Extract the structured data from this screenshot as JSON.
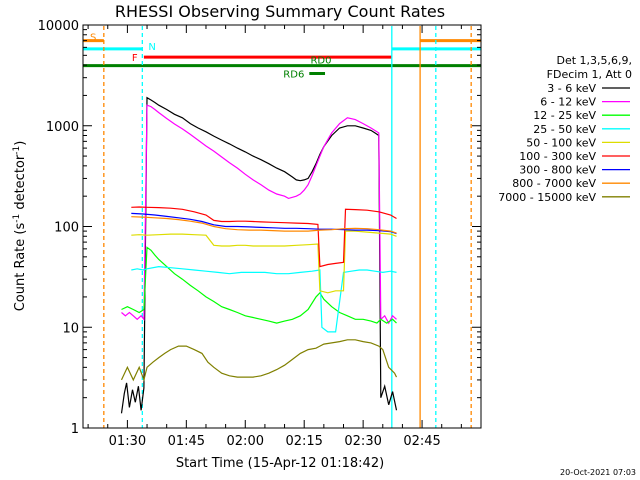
{
  "chart_data": {
    "type": "line",
    "title": "RHESSI Observing Summary Count Rates",
    "xlabel": "Start Time (15-Apr-12 01:18:42)",
    "ylabel_main": "Count Rate (s",
    "ylabel_sup1": "-1",
    "ylabel_mid": " detector",
    "ylabel_sup2": "-1",
    "ylabel_end": ")",
    "xlim": [
      78.7,
      180
    ],
    "ylim": [
      1,
      10000
    ],
    "yscale": "log",
    "x_unit": "minutes after 00:00 UT",
    "xticks": [
      {
        "value": 90,
        "label": "01:30"
      },
      {
        "value": 105,
        "label": "01:45"
      },
      {
        "value": 120,
        "label": "02:00"
      },
      {
        "value": 135,
        "label": "02:15"
      },
      {
        "value": 150,
        "label": "02:30"
      },
      {
        "value": 165,
        "label": "02:45"
      }
    ],
    "yticks": [
      {
        "value": 1,
        "label": "1"
      },
      {
        "value": 10,
        "label": "10"
      },
      {
        "value": 100,
        "label": "100"
      },
      {
        "value": 1000,
        "label": "1000"
      },
      {
        "value": 10000,
        "label": "10000"
      }
    ],
    "legend": {
      "header1": "Det 1,3,5,6,9,",
      "header2": "FDecim 1, Att 0",
      "placement": "right"
    },
    "series": [
      {
        "name": "3 - 6 keV",
        "color": "#000000",
        "x": [
          88.5,
          89.2,
          89.8,
          90.5,
          91.3,
          92.0,
          92.8,
          93.5,
          94.2,
          95.0,
          96.0,
          97.0,
          98.0,
          100.0,
          102.0,
          104.0,
          106.0,
          108.0,
          110.0,
          112.0,
          114.0,
          116.0,
          118.0,
          120.0,
          122.0,
          124.0,
          126.0,
          128.0,
          130.0,
          132.0,
          133.0,
          134.0,
          135.0,
          136.0,
          137.0,
          138.0,
          139.0,
          140.0,
          142.0,
          144.0,
          146.0,
          148.0,
          150.0,
          152.0,
          153.0,
          154.0,
          154.5,
          155.5,
          156.5,
          157.5,
          158.5
        ],
        "y": [
          1.4,
          2.2,
          2.8,
          1.6,
          2.4,
          1.8,
          2.6,
          1.5,
          2.5,
          1900,
          1800,
          1700,
          1600,
          1450,
          1300,
          1200,
          1050,
          950,
          870,
          790,
          720,
          660,
          600,
          550,
          500,
          460,
          420,
          380,
          350,
          310,
          290,
          285,
          290,
          300,
          350,
          420,
          520,
          620,
          800,
          950,
          1000,
          1000,
          950,
          900,
          850,
          800,
          2.0,
          2.6,
          1.7,
          2.3,
          1.5
        ]
      },
      {
        "name": "6 - 12 keV",
        "color": "#ff00ff",
        "x": [
          88.5,
          89.5,
          90.5,
          91.5,
          92.5,
          93.5,
          94.2,
          95.0,
          96.0,
          97.0,
          98.0,
          100.0,
          102.0,
          104.0,
          106.0,
          108.0,
          110.0,
          112.0,
          114.0,
          116.0,
          118.0,
          120.0,
          122.0,
          124.0,
          126.0,
          128.0,
          130.0,
          131.0,
          132.0,
          133.0,
          134.0,
          135.0,
          136.0,
          137.0,
          138.0,
          139.0,
          140.0,
          142.0,
          144.0,
          146.0,
          148.0,
          150.0,
          152.0,
          154.0,
          154.5,
          155.5,
          156.5,
          157.5,
          158.5
        ],
        "y": [
          14,
          13,
          14,
          13,
          12,
          13,
          12,
          1600,
          1550,
          1450,
          1350,
          1180,
          1040,
          930,
          820,
          720,
          630,
          560,
          490,
          430,
          380,
          330,
          290,
          260,
          230,
          210,
          200,
          190,
          195,
          200,
          210,
          230,
          260,
          320,
          400,
          500,
          620,
          850,
          1050,
          1200,
          1150,
          1050,
          950,
          850,
          12,
          13,
          11,
          13,
          12
        ]
      },
      {
        "name": "12 - 25 keV",
        "color": "#00ff00",
        "x": [
          88.5,
          90.0,
          91.5,
          93.0,
          94.2,
          95.0,
          96.0,
          97.0,
          98.0,
          100.0,
          102.0,
          104.0,
          106.0,
          108.0,
          110.0,
          112.0,
          114.0,
          116.0,
          118.0,
          120.0,
          122.0,
          124.0,
          126.0,
          128.0,
          130.0,
          132.0,
          134.0,
          136.0,
          138.0,
          139.0,
          140.0,
          142.0,
          144.0,
          146.0,
          148.0,
          150.0,
          152.0,
          153.5,
          154.5,
          156.0,
          157.5,
          158.5
        ],
        "y": [
          15,
          16,
          15,
          14,
          15,
          62,
          58,
          52,
          47,
          40,
          34,
          30,
          26,
          23,
          20,
          18,
          16,
          15,
          14,
          13,
          12.5,
          12,
          11.5,
          11,
          11.5,
          12,
          13,
          15,
          20,
          22,
          19,
          16,
          14,
          13,
          12,
          12,
          11.5,
          11,
          12,
          11,
          12,
          11
        ]
      },
      {
        "name": "25 - 50 keV",
        "color": "#00ffff",
        "x": [
          91.0,
          92.5,
          94.0,
          95.0,
          98.0,
          101.0,
          104.0,
          107.0,
          110.0,
          113.0,
          116.0,
          119.0,
          122.0,
          125.0,
          128.0,
          131.0,
          134.0,
          137.0,
          139.0,
          139.5,
          141.0,
          143.0,
          145.0,
          147.0,
          149.0,
          151.0,
          153.0,
          155.0,
          157.0,
          158.5
        ],
        "y": [
          37,
          38,
          37,
          38,
          40,
          39,
          38,
          37,
          36,
          35,
          34,
          35,
          35,
          35,
          34,
          34,
          35,
          36,
          37,
          10,
          9,
          9,
          35,
          36,
          37,
          37,
          36,
          35,
          36,
          35
        ]
      },
      {
        "name": "50 - 100 keV",
        "color": "#dddd00",
        "x": [
          91.0,
          93.0,
          95.0,
          98.0,
          101.0,
          104.0,
          107.0,
          110.0,
          112.0,
          114.0,
          116.0,
          118.0,
          120.0,
          122.0,
          124.0,
          127.0,
          130.0,
          133.0,
          136.0,
          138.5,
          139.0,
          141.0,
          143.0,
          145.0,
          145.5,
          148.0,
          151.0,
          154.0,
          157.0,
          158.5
        ],
        "y": [
          82,
          83,
          82,
          83,
          84,
          84,
          83,
          82,
          65,
          64,
          64,
          65,
          65,
          64,
          64,
          64,
          64,
          65,
          66,
          67,
          23,
          22,
          23,
          23,
          90,
          90,
          88,
          86,
          84,
          80
        ]
      },
      {
        "name": "100 - 300 keV",
        "color": "#ff0000",
        "x": [
          91.0,
          93.0,
          95.0,
          98.0,
          101.0,
          104.0,
          107.0,
          110.0,
          112.0,
          114.0,
          116.0,
          118.0,
          120.0,
          122.0,
          124.0,
          127.0,
          130.0,
          133.0,
          136.0,
          138.5,
          139.0,
          141.0,
          143.0,
          145.0,
          145.5,
          148.0,
          151.0,
          154.0,
          157.0,
          158.5
        ],
        "y": [
          155,
          156,
          155,
          154,
          152,
          148,
          140,
          130,
          115,
          112,
          112,
          113,
          113,
          112,
          111,
          110,
          109,
          108,
          107,
          105,
          40,
          42,
          43,
          44,
          148,
          147,
          145,
          140,
          130,
          120
        ]
      },
      {
        "name": "300 - 800 keV",
        "color": "#0000ff",
        "x": [
          91.0,
          94.0,
          97.0,
          100.0,
          103.0,
          106.0,
          109.0,
          112.0,
          115.0,
          118.0,
          121.0,
          124.0,
          127.0,
          130.0,
          133.0,
          136.0,
          139.0,
          142.0,
          145.0,
          148.0,
          151.0,
          154.0,
          157.0,
          158.5
        ],
        "y": [
          135,
          133,
          130,
          126,
          122,
          118,
          112,
          104,
          100,
          100,
          99,
          98,
          97,
          96,
          96,
          95,
          94,
          94,
          93,
          92,
          92,
          91,
          89,
          85
        ]
      },
      {
        "name": "800 - 7000 keV",
        "color": "#ff8800",
        "x": [
          91.0,
          94.0,
          97.0,
          100.0,
          103.0,
          106.0,
          109.0,
          112.0,
          115.0,
          118.0,
          121.0,
          124.0,
          127.0,
          130.0,
          133.0,
          136.0,
          139.0,
          142.0,
          145.0,
          148.0,
          151.0,
          154.0,
          157.0,
          158.5
        ],
        "y": [
          125,
          124,
          122,
          120,
          117,
          113,
          108,
          100,
          95,
          93,
          92,
          92,
          91,
          90,
          90,
          90,
          92,
          93,
          95,
          96,
          95,
          93,
          90,
          86
        ]
      },
      {
        "name": "7000 - 15000 keV",
        "color": "#808000",
        "x": [
          88.5,
          90.0,
          91.5,
          93.0,
          94.2,
          95.0,
          96.5,
          98.0,
          99.5,
          101.0,
          103.0,
          105.0,
          107.0,
          109.0,
          110.5,
          112.0,
          114.0,
          116.0,
          118.0,
          120.0,
          122.0,
          124.0,
          126.0,
          128.0,
          130.0,
          132.0,
          134.0,
          136.0,
          138.0,
          139.0,
          140.0,
          142.0,
          144.0,
          146.0,
          148.0,
          150.0,
          152.0,
          154.0,
          155.0,
          156.5,
          158.0,
          158.5
        ],
        "y": [
          3.0,
          4.0,
          3.0,
          4.0,
          3.0,
          4.0,
          4.5,
          5.0,
          5.5,
          6.0,
          6.5,
          6.5,
          6.0,
          5.5,
          4.5,
          4.0,
          3.5,
          3.3,
          3.2,
          3.2,
          3.2,
          3.3,
          3.5,
          3.8,
          4.2,
          4.8,
          5.5,
          6.0,
          6.2,
          6.5,
          6.8,
          7.0,
          7.2,
          7.5,
          7.5,
          7.2,
          7.0,
          6.5,
          6.0,
          4.0,
          3.5,
          3.2
        ]
      }
    ],
    "annotations": {
      "saa": {
        "label": "S",
        "color": "#ff8800",
        "start": 78.7,
        "end": 84.0,
        "level": 7000,
        "resume_start": 164.5,
        "resume_end": 180
      },
      "night": {
        "label": "N",
        "color": "#00ffff",
        "start": 78.7,
        "end": 93.8,
        "level": 5800,
        "resume_start": 157.3,
        "resume_end": 180
      },
      "flare": {
        "label": "F",
        "color": "#ff0000",
        "start": 94.2,
        "end": 157.2,
        "level": 4800
      },
      "rd0": {
        "label": "RD0",
        "color": "#008000",
        "start": 78.7,
        "end": 180,
        "level": 3950
      },
      "rd6": {
        "label": "RD6",
        "color": "#008000",
        "start": 136.3,
        "end": 140.3,
        "level": 3300
      }
    },
    "vertical_markers": [
      {
        "x": 84.0,
        "color": "#ff8800",
        "dashed": true
      },
      {
        "x": 93.8,
        "color": "#00ffff",
        "dashed": true
      },
      {
        "x": 157.3,
        "color": "#00ffff",
        "dashed": false
      },
      {
        "x": 164.5,
        "color": "#ff8800",
        "dashed": false
      },
      {
        "x": 168.5,
        "color": "#00ffff",
        "dashed": true
      },
      {
        "x": 177.5,
        "color": "#ff8800",
        "dashed": true
      }
    ]
  },
  "footer": {
    "timestamp": "20-Oct-2021 07:03"
  }
}
